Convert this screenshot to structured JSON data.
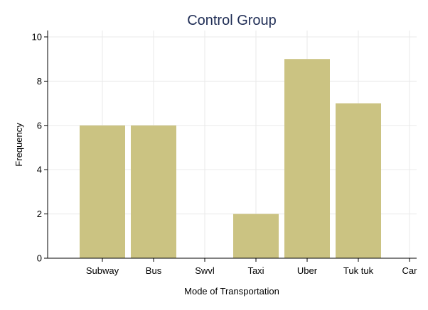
{
  "chart_data": {
    "type": "bar",
    "title": "Control Group",
    "xlabel": "Mode of Transportation",
    "ylabel": "Frequency",
    "categories": [
      "Subway",
      "Bus",
      "Swvl",
      "Taxi",
      "Uber",
      "Tuk tuk",
      "Car"
    ],
    "values": [
      6,
      6,
      0,
      2,
      9,
      7,
      0
    ],
    "ylim": [
      0,
      10
    ],
    "yticks": [
      0,
      2,
      4,
      6,
      8,
      10
    ],
    "grid": true,
    "legend": "none",
    "bar_color": "#cbc382",
    "grid_color": "#eaeaea"
  }
}
